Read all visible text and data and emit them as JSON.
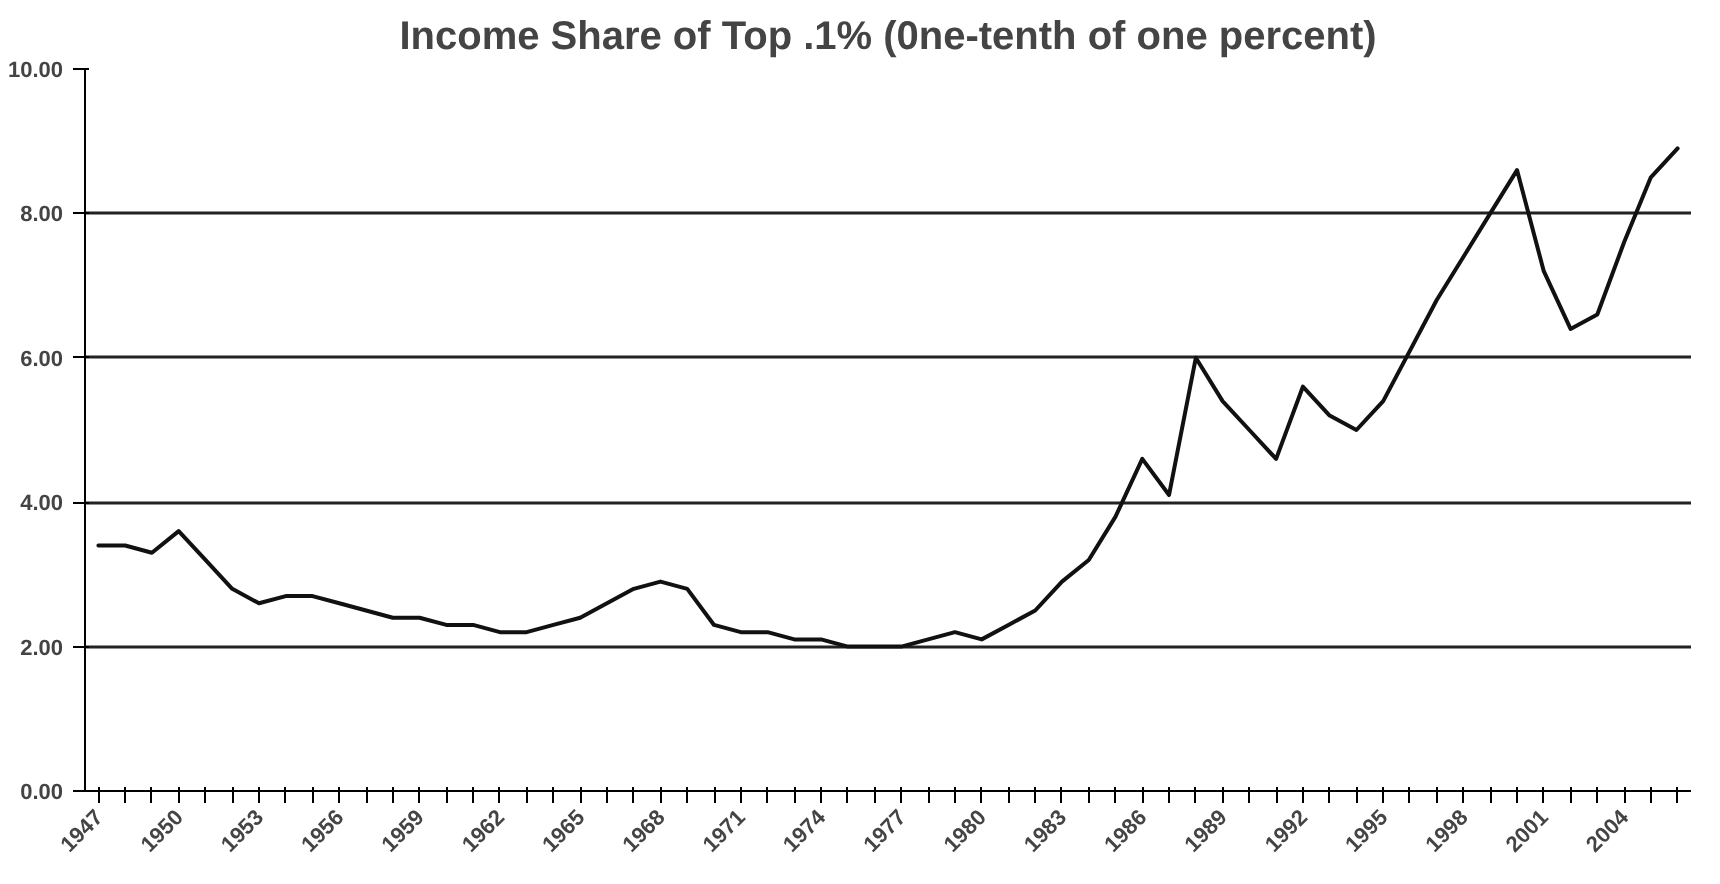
{
  "chart_data": {
    "type": "line",
    "title": "Income Share of Top .1% (0ne-tenth of one percent)",
    "categories": [
      "1947",
      null,
      null,
      "1950",
      null,
      null,
      "1953",
      null,
      null,
      "1956",
      null,
      null,
      "1959",
      null,
      null,
      "1962",
      null,
      null,
      "1965",
      null,
      null,
      "1968",
      null,
      null,
      "1971",
      null,
      null,
      "1974",
      null,
      null,
      "1977",
      null,
      null,
      "1980",
      null,
      null,
      "1983",
      null,
      null,
      "1986",
      null,
      null,
      "1989",
      null,
      null,
      "1992",
      null,
      null,
      "1995",
      null,
      null,
      "1998",
      null,
      null,
      "2001",
      null,
      null,
      "2004",
      null,
      null
    ],
    "series": [
      {
        "color": "#111111",
        "values": [
          3.4,
          3.4,
          3.3,
          3.6,
          3.2,
          2.8,
          2.6,
          2.7,
          2.7,
          2.6,
          2.5,
          2.4,
          2.4,
          2.3,
          2.3,
          2.2,
          2.2,
          2.3,
          2.4,
          2.6,
          2.8,
          2.9,
          2.8,
          2.3,
          2.2,
          2.2,
          2.1,
          2.1,
          2.0,
          2.0,
          2.0,
          2.1,
          2.2,
          2.1,
          2.3,
          2.5,
          2.9,
          3.2,
          3.8,
          4.6,
          4.1,
          6.0,
          5.4,
          5.0,
          4.6,
          5.6,
          5.2,
          5.0,
          5.4,
          6.1,
          6.8,
          7.4,
          8.0,
          8.6,
          7.2,
          6.4,
          6.6,
          7.6,
          8.5,
          8.9
        ]
      }
    ],
    "ylim": [
      0,
      10
    ],
    "yticks": [
      {
        "value": 0,
        "label": "0.00"
      },
      {
        "value": 2,
        "label": "2.00"
      },
      {
        "value": 4,
        "label": "4.00"
      },
      {
        "value": 6,
        "label": "6.00"
      },
      {
        "value": 8,
        "label": "8.00"
      },
      {
        "value": 10,
        "label": "10.00"
      }
    ],
    "grid": "y",
    "line_style": "solid"
  }
}
